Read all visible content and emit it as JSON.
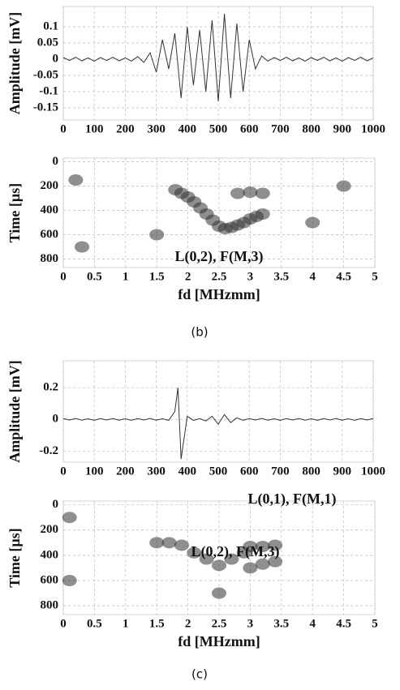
{
  "captions": [
    "(b)",
    "(c)"
  ],
  "chart_data": [
    {
      "type": "line",
      "ylabel": "Amplitude [mV]",
      "color": "#333",
      "xlim": [
        0,
        1000
      ],
      "xticks": [
        0,
        100,
        200,
        300,
        400,
        500,
        600,
        700,
        800,
        900,
        1000
      ],
      "ylim": [
        -0.1875,
        0.1625
      ],
      "yticks": [
        0.1,
        0.05,
        0,
        -0.05,
        -0.1,
        -0.15
      ],
      "x": [
        0,
        20,
        40,
        60,
        80,
        100,
        120,
        140,
        160,
        180,
        200,
        220,
        240,
        260,
        280,
        300,
        320,
        340,
        360,
        380,
        400,
        420,
        440,
        460,
        480,
        500,
        520,
        540,
        560,
        580,
        600,
        620,
        640,
        660,
        680,
        700,
        720,
        740,
        760,
        780,
        800,
        820,
        840,
        860,
        880,
        900,
        920,
        940,
        960,
        980,
        1000
      ],
      "values": [
        0.005,
        -0.004,
        0.006,
        -0.005,
        0.004,
        -0.006,
        0.005,
        -0.004,
        0.006,
        -0.005,
        0.004,
        -0.006,
        0.008,
        -0.01,
        0.02,
        -0.04,
        0.06,
        -0.03,
        0.08,
        -0.12,
        0.1,
        -0.08,
        0.09,
        -0.1,
        0.12,
        -0.13,
        0.14,
        -0.12,
        0.11,
        -0.1,
        0.06,
        -0.03,
        0.01,
        -0.006,
        0.005,
        -0.004,
        0.006,
        -0.005,
        0.004,
        -0.006,
        0.005,
        -0.004,
        0.006,
        -0.005,
        0.004,
        -0.006,
        0.005,
        -0.004,
        0.006,
        -0.005,
        0.004
      ]
    },
    {
      "type": "scatter",
      "xlabel": "fd [MHzmm]",
      "ylabel": "Time [µs]",
      "color": "#333",
      "annotations": [
        "L(0,2), F(M,3)"
      ],
      "xlim": [
        0,
        5
      ],
      "xticks": [
        0,
        0.5,
        1,
        1.5,
        2,
        2.5,
        3,
        3.5,
        4,
        4.5,
        5
      ],
      "ylim": [
        870,
        -30
      ],
      "yticks": [
        0,
        200,
        400,
        600,
        800
      ],
      "x": [
        1.8,
        1.9,
        2.0,
        2.1,
        2.2,
        2.3,
        2.4,
        2.5,
        2.6,
        2.7,
        2.8,
        2.9,
        3.0,
        3.1,
        3.2,
        2.8,
        3.0,
        3.2,
        0.2,
        0.3,
        1.5,
        4.0,
        4.5
      ],
      "values": [
        230,
        260,
        290,
        330,
        380,
        430,
        480,
        530,
        550,
        540,
        520,
        500,
        470,
        450,
        430,
        260,
        250,
        260,
        150,
        700,
        600,
        500,
        200
      ]
    },
    {
      "type": "line",
      "ylabel": "Amplitude [mV]",
      "color": "#333",
      "xlim": [
        0,
        1000
      ],
      "xticks": [
        0,
        100,
        200,
        300,
        400,
        500,
        600,
        700,
        800,
        900,
        1000
      ],
      "ylim": [
        -0.27,
        0.37
      ],
      "yticks": [
        0.2,
        0,
        -0.2
      ],
      "x": [
        0,
        20,
        40,
        60,
        80,
        100,
        120,
        140,
        160,
        180,
        200,
        220,
        240,
        260,
        280,
        300,
        320,
        340,
        360,
        370,
        380,
        400,
        420,
        440,
        460,
        480,
        500,
        520,
        540,
        560,
        580,
        600,
        620,
        640,
        660,
        680,
        700,
        720,
        740,
        760,
        780,
        800,
        820,
        840,
        860,
        880,
        900,
        920,
        940,
        960,
        980,
        1000
      ],
      "values": [
        0.005,
        -0.004,
        0.006,
        -0.005,
        0.004,
        -0.006,
        0.005,
        -0.004,
        0.006,
        -0.005,
        0.004,
        -0.006,
        0.005,
        -0.004,
        0.006,
        -0.005,
        0.004,
        -0.006,
        0.05,
        0.2,
        -0.25,
        0.02,
        -0.006,
        0.005,
        -0.01,
        0.02,
        -0.03,
        0.03,
        -0.02,
        0.01,
        -0.006,
        0.005,
        -0.004,
        0.006,
        -0.005,
        0.004,
        -0.006,
        0.005,
        -0.004,
        0.006,
        -0.005,
        0.004,
        -0.006,
        0.005,
        -0.004,
        0.006,
        -0.005,
        0.004,
        -0.006,
        0.005,
        -0.004,
        0.006
      ]
    },
    {
      "type": "scatter",
      "xlabel": "fd [MHzmm]",
      "ylabel": "Time [µs]",
      "color": "#333",
      "annotations": [
        "L(0,1), F(M,1)",
        "L(0,2), F(M,3)"
      ],
      "xlim": [
        0,
        5
      ],
      "xticks": [
        0,
        0.5,
        1,
        1.5,
        2,
        2.5,
        3,
        3.5,
        4,
        4.5,
        5
      ],
      "ylim": [
        870,
        -30
      ],
      "yticks": [
        0,
        200,
        400,
        600,
        800
      ],
      "x": [
        1.5,
        1.7,
        1.9,
        2.1,
        2.3,
        2.5,
        2.7,
        2.9,
        3.0,
        3.2,
        3.4,
        3.0,
        3.2,
        3.4,
        0.1,
        0.1,
        2.5
      ],
      "values": [
        300,
        300,
        320,
        380,
        430,
        480,
        430,
        380,
        330,
        330,
        320,
        500,
        470,
        450,
        100,
        600,
        700
      ]
    }
  ]
}
